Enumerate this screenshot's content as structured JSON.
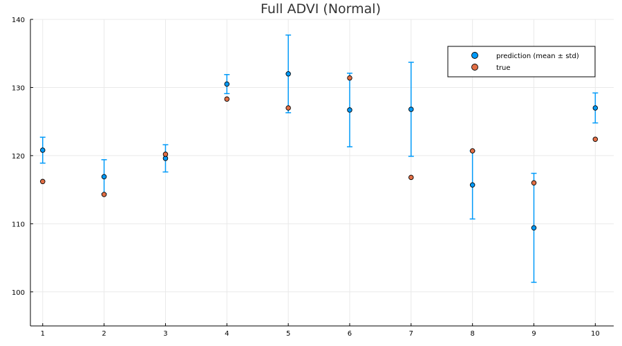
{
  "chart_data": {
    "type": "scatter",
    "title": "Full ADVI (Normal)",
    "xlabel": "",
    "ylabel": "",
    "xlim": [
      0.8,
      10.3
    ],
    "ylim": [
      95,
      140
    ],
    "x_ticks": [
      1,
      2,
      3,
      4,
      5,
      6,
      7,
      8,
      9,
      10
    ],
    "y_ticks": [
      100,
      110,
      120,
      130,
      140
    ],
    "grid": true,
    "legend_position": "top-right",
    "series": [
      {
        "name": "prediction (mean ± std)",
        "color": "#009af9",
        "x": [
          1,
          2,
          3,
          4,
          5,
          6,
          7,
          8,
          9,
          10
        ],
        "y": [
          120.8,
          116.9,
          119.6,
          130.5,
          132.0,
          126.7,
          126.8,
          115.7,
          109.4,
          127.0
        ],
        "error": [
          1.9,
          2.5,
          2.0,
          1.4,
          5.7,
          5.4,
          6.9,
          5.0,
          8.0,
          2.2
        ]
      },
      {
        "name": "true",
        "color": "#e26f46",
        "x": [
          1,
          2,
          3,
          4,
          5,
          6,
          7,
          8,
          9,
          10
        ],
        "y": [
          116.2,
          114.3,
          120.2,
          128.3,
          127.0,
          131.4,
          116.8,
          120.7,
          116.0,
          122.4
        ]
      }
    ]
  }
}
